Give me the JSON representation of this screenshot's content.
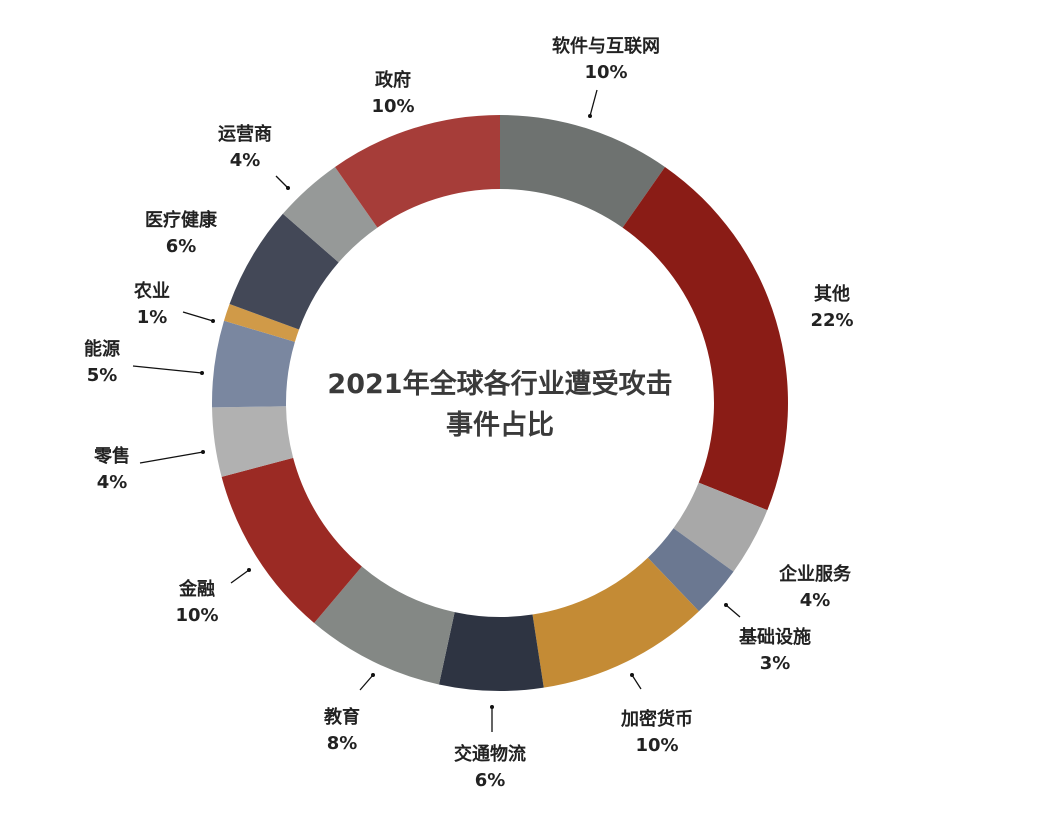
{
  "chart_data": {
    "type": "pie",
    "title_line1": "2021年全球各行业遭受攻击",
    "title_line2": "事件占比",
    "unit": "%",
    "slices": [
      {
        "name": "软件与互联网",
        "value": 10,
        "pct_label": "10%",
        "color": "#6e7270"
      },
      {
        "name": "其他",
        "value": 22,
        "pct_label": "22%",
        "color": "#8a1c16"
      },
      {
        "name": "企业服务",
        "value": 4,
        "pct_label": "4%",
        "color": "#a8a8a8"
      },
      {
        "name": "基础设施",
        "value": 3,
        "pct_label": "3%",
        "color": "#6b7891"
      },
      {
        "name": "加密货币",
        "value": 10,
        "pct_label": "10%",
        "color": "#c48b35"
      },
      {
        "name": "交通物流",
        "value": 6,
        "pct_label": "6%",
        "color": "#2e3442"
      },
      {
        "name": "教育",
        "value": 8,
        "pct_label": "8%",
        "color": "#848885"
      },
      {
        "name": "金融",
        "value": 10,
        "pct_label": "10%",
        "color": "#9b2a24"
      },
      {
        "name": "零售",
        "value": 4,
        "pct_label": "4%",
        "color": "#b1b1b1"
      },
      {
        "name": "能源",
        "value": 5,
        "pct_label": "5%",
        "color": "#7a87a0"
      },
      {
        "name": "农业",
        "value": 1,
        "pct_label": "1%",
        "color": "#d09a48"
      },
      {
        "name": "医疗健康",
        "value": 6,
        "pct_label": "6%",
        "color": "#434857"
      },
      {
        "name": "运营商",
        "value": 4,
        "pct_label": "4%",
        "color": "#969998"
      },
      {
        "name": "政府",
        "value": 10,
        "pct_label": "10%",
        "color": "#a63d39"
      }
    ]
  }
}
